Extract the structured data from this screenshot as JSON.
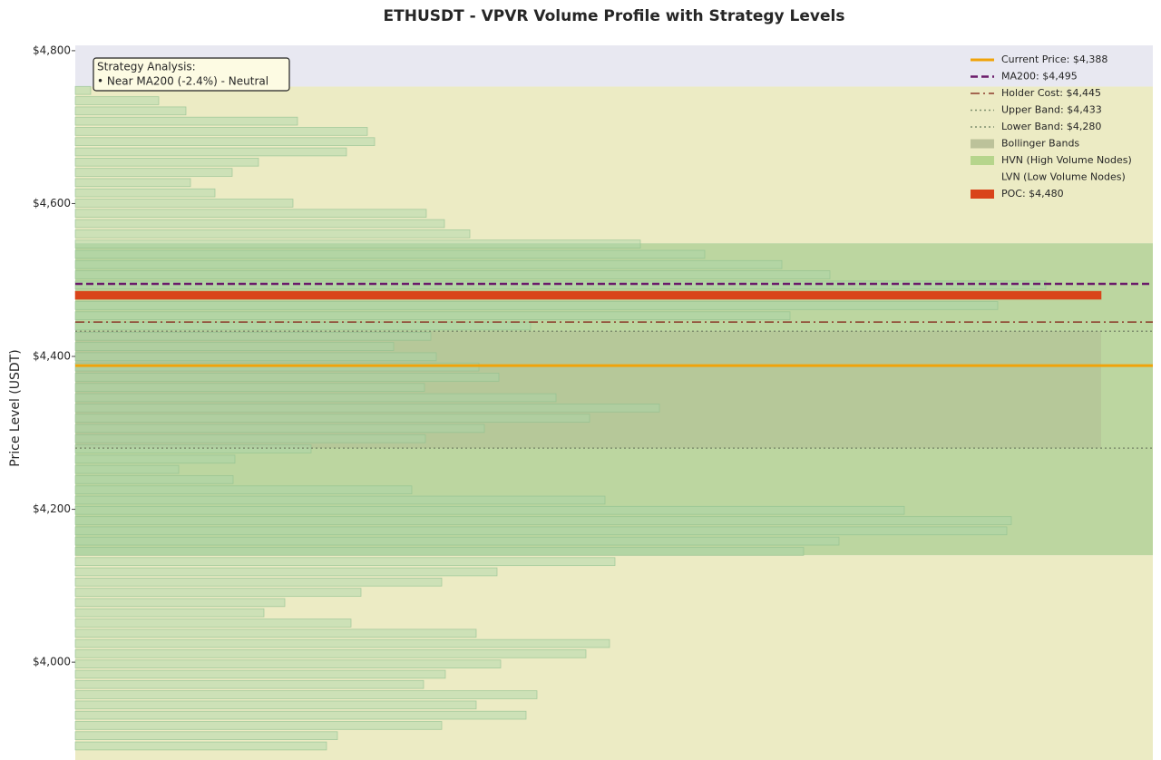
{
  "chart_data": {
    "type": "volume_profile",
    "title": "ETHUSDT - VPVR Volume Profile with Strategy Levels",
    "y_label": "Price Level (USDT)",
    "ylim": [
      3872,
      4807
    ],
    "yticks": [
      {
        "value": 4000,
        "label": "$4,000"
      },
      {
        "value": 4200,
        "label": "$4,200"
      },
      {
        "value": 4400,
        "label": "$4,400"
      },
      {
        "value": 4600,
        "label": "$4,600"
      },
      {
        "value": 4800,
        "label": "$4,800"
      }
    ],
    "xlim": [
      0,
      1188
    ],
    "bar_color": "#a8d5a8",
    "prices": [
      4748.0,
      4734.6,
      4721.2,
      4707.8,
      4694.4,
      4681.0,
      4667.6,
      4654.2,
      4640.8,
      4627.4,
      4614.0,
      4600.6,
      4587.2,
      4573.8,
      4560.4,
      4547.0,
      4533.6,
      4520.2,
      4506.8,
      4493.4,
      4480.0,
      4466.6,
      4453.2,
      4439.8,
      4426.4,
      4413.0,
      4399.6,
      4386.2,
      4372.8,
      4359.4,
      4346.0,
      4332.6,
      4319.2,
      4305.8,
      4292.4,
      4279.0,
      4265.6,
      4252.2,
      4238.8,
      4225.4,
      4212.0,
      4198.6,
      4185.2,
      4171.8,
      4158.4,
      4145.0,
      4131.6,
      4118.2,
      4104.8,
      4091.4,
      4078.0,
      4064.6,
      4051.2,
      4037.8,
      4024.4,
      4011.0,
      3997.6,
      3984.2,
      3970.8,
      3957.4,
      3944.0,
      3930.6,
      3917.2,
      3903.8,
      3890.4
    ],
    "values": [
      17,
      92,
      122,
      245,
      322,
      330,
      299,
      202,
      173,
      127,
      154,
      240,
      387,
      407,
      435,
      623,
      694,
      779,
      832,
      1070,
      1131,
      1017,
      788,
      502,
      392,
      351,
      398,
      445,
      467,
      385,
      530,
      644,
      567,
      451,
      386,
      260,
      176,
      114,
      174,
      371,
      584,
      914,
      1032,
      1027,
      842,
      803,
      595,
      465,
      404,
      315,
      231,
      208,
      304,
      442,
      589,
      563,
      469,
      408,
      384,
      509,
      442,
      497,
      404,
      289,
      277
    ],
    "levels": [
      {
        "name": "Current Price: $4,388",
        "value": 4388,
        "color": "#f0a30a",
        "style": "solid"
      },
      {
        "name": "MA200: $4,495",
        "value": 4495,
        "color": "#6a1b6a",
        "style": "dashed"
      },
      {
        "name": "Holder Cost: $4,445",
        "value": 4445,
        "color": "#8b3a2a",
        "style": "dashdot"
      },
      {
        "name": "Upper Band: $4,433",
        "value": 4433,
        "color": "#7f8f6f",
        "style": "dotted"
      },
      {
        "name": "Lower Band: $4,280",
        "value": 4280,
        "color": "#7f8f6f",
        "style": "dotted"
      }
    ],
    "zones": [
      {
        "name": "Bollinger Bands",
        "ranges": [
          [
            4280,
            4433
          ]
        ],
        "color": "#b0b890"
      },
      {
        "name": "HVN (High Volume Nodes)",
        "ranges": [
          [
            4140,
            4548
          ]
        ],
        "color": "#a9cf7e"
      },
      {
        "name": "LVN (Low Volume Nodes)",
        "ranges": [
          [
            3872,
            4140
          ],
          [
            4548,
            4753
          ]
        ],
        "color": "#ecebc4"
      }
    ],
    "poc": {
      "name": "POC: $4,480",
      "value": 4480,
      "color": "#d9441a"
    },
    "annotation": {
      "title": "Strategy Analysis:",
      "text": "• Near MA200 (-2.4%) - Neutral"
    }
  }
}
